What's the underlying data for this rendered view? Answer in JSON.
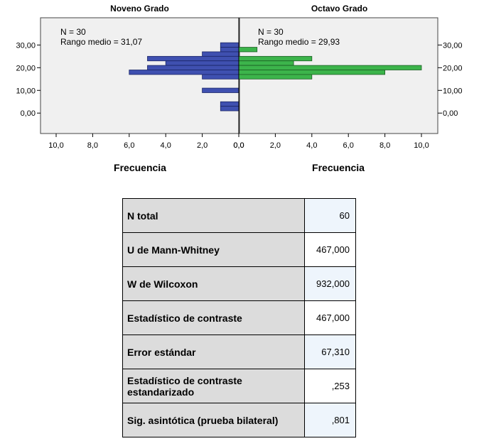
{
  "chart_data": {
    "type": "bar",
    "orientation": "horizontal",
    "layout": "population-pyramid",
    "ylim": [
      -9,
      42
    ],
    "xlim_left": [
      0,
      10
    ],
    "xlim_right": [
      0,
      10
    ],
    "bin_width": 2,
    "y_ticks": [
      {
        "value": 0,
        "label": "0,00"
      },
      {
        "value": 10,
        "label": "10,00"
      },
      {
        "value": 20,
        "label": "20,00"
      },
      {
        "value": 30,
        "label": "30,00"
      }
    ],
    "x_tick_values": [
      10,
      8,
      6,
      4,
      2,
      0
    ],
    "x_tick_labels_left": [
      "10,0",
      "8,0",
      "6,0",
      "4,0",
      "2,0",
      "0,0"
    ],
    "x_tick_labels_right": [
      "0,0",
      "2,0",
      "4,0",
      "6,0",
      "8,0",
      "10,0"
    ],
    "series": [
      {
        "name": "Noveno Grado",
        "side": "left",
        "color": "#3f50b0",
        "n_label": "N = 30",
        "rank_label": "Rango medio = 31,07",
        "bins": [
          {
            "y": 30,
            "count": 1
          },
          {
            "y": 28,
            "count": 1
          },
          {
            "y": 26,
            "count": 2
          },
          {
            "y": 24,
            "count": 5
          },
          {
            "y": 22,
            "count": 4
          },
          {
            "y": 20,
            "count": 5
          },
          {
            "y": 18,
            "count": 6
          },
          {
            "y": 16,
            "count": 2
          },
          {
            "y": 10,
            "count": 2
          },
          {
            "y": 4,
            "count": 1
          },
          {
            "y": 2,
            "count": 1
          }
        ]
      },
      {
        "name": "Octavo Grado",
        "side": "right",
        "color": "#3cb44b",
        "n_label": "N = 30",
        "rank_label": "Rango medio = 29,93",
        "bins": [
          {
            "y": 28,
            "count": 1
          },
          {
            "y": 24,
            "count": 4
          },
          {
            "y": 22,
            "count": 3
          },
          {
            "y": 20,
            "count": 10
          },
          {
            "y": 18,
            "count": 8
          },
          {
            "y": 16,
            "count": 4
          }
        ]
      }
    ],
    "xlabel": "Frecuencia",
    "grid": false
  },
  "stats_table": {
    "rows": [
      {
        "label": "N total",
        "value": "60"
      },
      {
        "label": "U de Mann-Whitney",
        "value": "467,000"
      },
      {
        "label": "W de Wilcoxon",
        "value": "932,000"
      },
      {
        "label": "Estadístico de contraste",
        "value": "467,000"
      },
      {
        "label": "Error estándar",
        "value": "67,310"
      },
      {
        "label": "Estadístico de contraste estandarizado",
        "value": ",253"
      },
      {
        "label": "Sig. asintótica (prueba bilateral)",
        "value": ",801"
      }
    ]
  }
}
